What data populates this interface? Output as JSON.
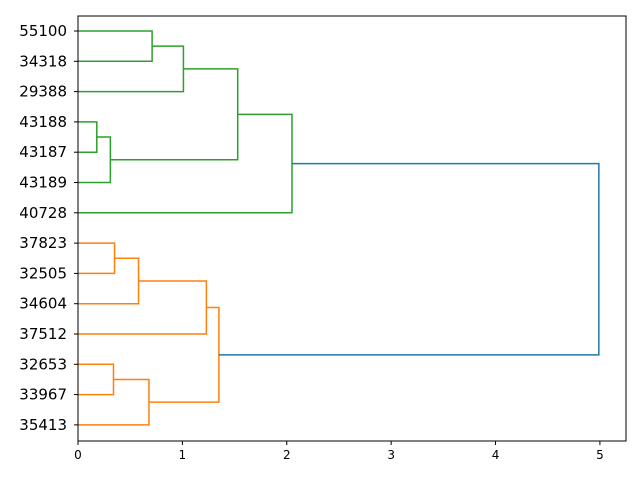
{
  "chart_data": {
    "type": "dendrogram",
    "orientation": "right",
    "title": "",
    "xlabel": "",
    "ylabel": "",
    "xlim": [
      0,
      5.25
    ],
    "xticks": [
      0,
      1,
      2,
      3,
      4,
      5
    ],
    "leaves": [
      "55100",
      "34318",
      "29388",
      "43188",
      "43187",
      "43189",
      "40728",
      "37823",
      "32505",
      "34604",
      "37512",
      "32653",
      "33967",
      "35413"
    ],
    "colors": {
      "cluster_a": "#2ca02c",
      "cluster_b": "#ff7f0e",
      "above_threshold": "#1f77b4"
    },
    "merges": [
      {
        "children": [
          "L:55100",
          "L:34318"
        ],
        "height": 0.71,
        "color": "cluster_a"
      },
      {
        "children": [
          "M:0",
          "L:29388"
        ],
        "height": 1.01,
        "color": "cluster_a"
      },
      {
        "children": [
          "L:43188",
          "L:43187"
        ],
        "height": 0.18,
        "color": "cluster_a"
      },
      {
        "children": [
          "M:2",
          "L:43189"
        ],
        "height": 0.31,
        "color": "cluster_a"
      },
      {
        "children": [
          "M:1",
          "M:3"
        ],
        "height": 1.53,
        "color": "cluster_a"
      },
      {
        "children": [
          "M:4",
          "L:40728"
        ],
        "height": 2.05,
        "color": "cluster_a"
      },
      {
        "children": [
          "L:37823",
          "L:32505"
        ],
        "height": 0.35,
        "color": "cluster_b"
      },
      {
        "children": [
          "M:6",
          "L:34604"
        ],
        "height": 0.58,
        "color": "cluster_b"
      },
      {
        "children": [
          "M:7",
          "L:37512"
        ],
        "height": 1.23,
        "color": "cluster_b"
      },
      {
        "children": [
          "L:32653",
          "L:33967"
        ],
        "height": 0.34,
        "color": "cluster_b"
      },
      {
        "children": [
          "M:9",
          "L:35413"
        ],
        "height": 0.68,
        "color": "cluster_b"
      },
      {
        "children": [
          "M:8",
          "M:10"
        ],
        "height": 1.35,
        "color": "cluster_b"
      },
      {
        "children": [
          "M:5",
          "M:11"
        ],
        "height": 4.99,
        "color": "above_threshold"
      }
    ]
  }
}
